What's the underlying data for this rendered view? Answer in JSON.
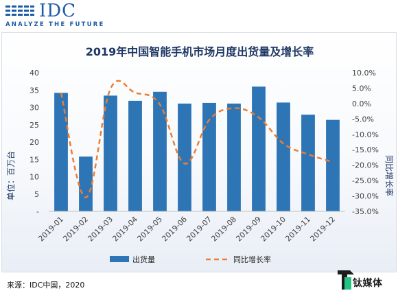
{
  "header": {
    "logo_text": "IDC",
    "tagline": "ANALYZE THE FUTURE"
  },
  "footer": {
    "source": "来源：IDC中国，2020"
  },
  "watermark": {
    "text": "钛媒体"
  },
  "colors": {
    "brand": "#1d5aa6",
    "bar": "#2e75b6",
    "line": "#ed7d31",
    "title": "#1f3864",
    "axis_text": "#404040"
  },
  "chart_data": {
    "type": "bar",
    "title": "2019年中国智能手机市场月度出货量及增长率",
    "categories": [
      "2019-01",
      "2019-02",
      "2019-03",
      "2019-04",
      "2019-05",
      "2019-06",
      "2019-07",
      "2019-08",
      "2019-09",
      "2019-10",
      "2019-11",
      "2019-12"
    ],
    "series": [
      {
        "name": "出货量",
        "type": "bar",
        "axis": "left",
        "values": [
          34.2,
          15.8,
          33.4,
          31.9,
          34.5,
          31.1,
          31.3,
          31.1,
          36.0,
          31.4,
          27.9,
          26.4
        ]
      },
      {
        "name": "同比增长率",
        "type": "line",
        "style": "dashed",
        "axis": "right",
        "values": [
          3.5,
          -30.5,
          4.8,
          3.5,
          -0.3,
          -19.5,
          -5.3,
          -1.5,
          -4.5,
          -13.0,
          -16.5,
          -19.0
        ]
      }
    ],
    "ylabel": "单位：百万台",
    "y2label": "同比增长率",
    "ylim": [
      0,
      40
    ],
    "y2lim": [
      -35,
      10
    ],
    "yticks": [
      "-",
      "5",
      "10",
      "15",
      "20",
      "25",
      "30",
      "35",
      "40"
    ],
    "y2ticks": [
      "-35.0%",
      "-30.0%",
      "-25.0%",
      "-20.0%",
      "-15.0%",
      "-10.0%",
      "-5.0%",
      "0.0%",
      "5.0%",
      "10.0%"
    ],
    "legend_position": "bottom",
    "grid": false
  }
}
